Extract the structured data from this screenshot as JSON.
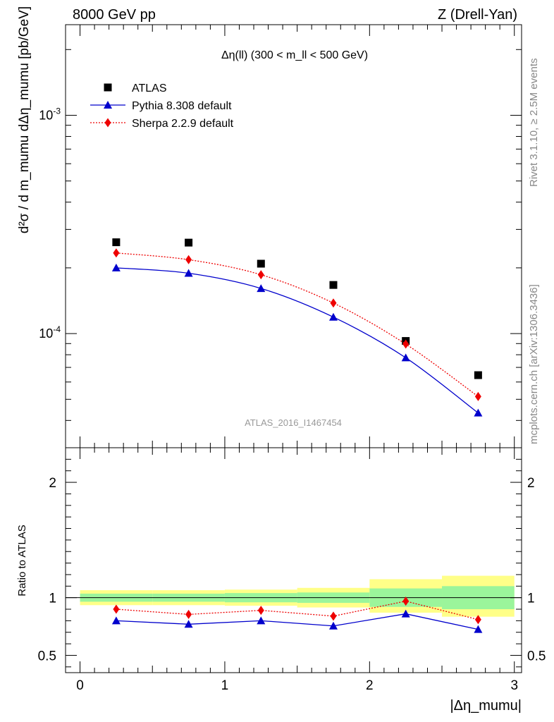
{
  "header": {
    "left": "8000 GeV pp",
    "right": "Z (Drell-Yan)"
  },
  "side_labels": {
    "rivet": "Rivet 3.1.10, ≥ 2.5M events",
    "mcplots": "mcplots.cern.ch [arXiv:1306.3436]"
  },
  "chart_data": [
    {
      "type": "scatter",
      "panel": "main",
      "title": "Δη(ll) (300 < m_ll < 500 GeV)",
      "analysis_tag": "ATLAS_2016_I1467454",
      "ylabel": "d²σ / d m_mumu dΔη_mumu [pb/GeV]",
      "yscale": "log",
      "xlim": [
        -0.1,
        3.05
      ],
      "ylim": [
        3e-05,
        0.0026
      ],
      "y_tick_labels": [
        "10^-4",
        "10^-3"
      ],
      "legend_position": "top-left",
      "x": [
        0.25,
        0.75,
        1.25,
        1.75,
        2.25,
        2.75
      ],
      "series": [
        {
          "name": "ATLAS",
          "color": "#000000",
          "marker": "square",
          "line": "none",
          "values": [
            0.000262,
            0.000261,
            0.000209,
            0.000167,
            9.25e-05,
            6.45e-05
          ]
        },
        {
          "name": "Pythia 8.308 default",
          "color": "#0000cc",
          "marker": "triangle",
          "line": "solid",
          "values": [
            0.0002,
            0.000189,
            0.000161,
            0.000119,
            7.75e-05,
            4.33e-05
          ]
        },
        {
          "name": "Sherpa 2.2.9 default",
          "color": "#ee0000",
          "marker": "diamond",
          "line": "dotted",
          "values": [
            0.000234,
            0.000218,
            0.000186,
            0.000138,
            8.95e-05,
            5.15e-05
          ]
        }
      ]
    },
    {
      "type": "line",
      "panel": "ratio",
      "ylabel": "Ratio to ATLAS",
      "xlabel": "|Δη_mumu|",
      "xlim": [
        -0.1,
        3.05
      ],
      "ylim": [
        0.35,
        2.3
      ],
      "x_ticks": [
        0,
        1,
        2,
        3
      ],
      "x_tick_labels": [
        "0",
        "1",
        "2",
        "3"
      ],
      "y_ticks": [
        0.5,
        1,
        2
      ],
      "y_tick_labels": [
        "0.5",
        "1",
        "2"
      ],
      "bins": [
        [
          0,
          0.5
        ],
        [
          0.5,
          1.0
        ],
        [
          1.0,
          1.5
        ],
        [
          1.5,
          2.0
        ],
        [
          2.0,
          2.5
        ],
        [
          2.5,
          3.0
        ]
      ],
      "band_inner": [
        [
          0.965,
          1.035
        ],
        [
          0.965,
          1.035
        ],
        [
          0.96,
          1.04
        ],
        [
          0.955,
          1.045
        ],
        [
          0.92,
          1.08
        ],
        [
          0.9,
          1.1
        ]
      ],
      "band_outer": [
        [
          0.935,
          1.065
        ],
        [
          0.935,
          1.065
        ],
        [
          0.93,
          1.07
        ],
        [
          0.915,
          1.085
        ],
        [
          0.87,
          1.16
        ],
        [
          0.835,
          1.19
        ]
      ],
      "band_colors": {
        "inner": "#9bf59b",
        "outer": "#ffff88"
      },
      "x": [
        0.25,
        0.75,
        1.25,
        1.75,
        2.25,
        2.75
      ],
      "series": [
        {
          "name": "Pythia 8.308 default",
          "color": "#0000cc",
          "marker": "triangle",
          "line": "solid",
          "values": [
            0.8,
            0.77,
            0.8,
            0.755,
            0.86,
            0.725
          ]
        },
        {
          "name": "Sherpa 2.2.9 default",
          "color": "#ee0000",
          "marker": "diamond",
          "line": "dotted",
          "values": [
            0.9,
            0.855,
            0.89,
            0.84,
            0.97,
            0.81
          ]
        }
      ]
    }
  ]
}
